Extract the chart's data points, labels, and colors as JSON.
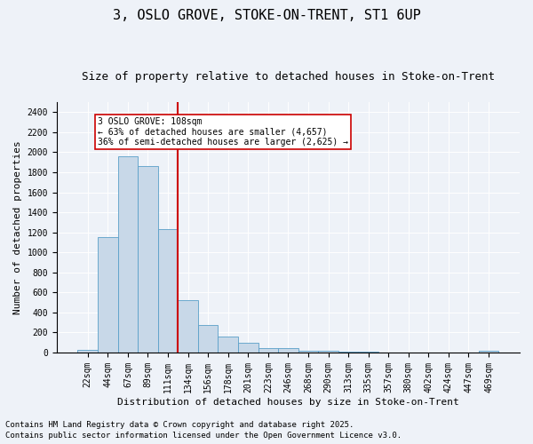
{
  "title1": "3, OSLO GROVE, STOKE-ON-TRENT, ST1 6UP",
  "title2": "Size of property relative to detached houses in Stoke-on-Trent",
  "xlabel": "Distribution of detached houses by size in Stoke-on-Trent",
  "ylabel": "Number of detached properties",
  "bar_labels": [
    "22sqm",
    "44sqm",
    "67sqm",
    "89sqm",
    "111sqm",
    "134sqm",
    "156sqm",
    "178sqm",
    "201sqm",
    "223sqm",
    "246sqm",
    "268sqm",
    "290sqm",
    "313sqm",
    "335sqm",
    "357sqm",
    "380sqm",
    "402sqm",
    "424sqm",
    "447sqm",
    "469sqm"
  ],
  "bar_values": [
    25,
    1155,
    1960,
    1860,
    1230,
    520,
    275,
    155,
    95,
    45,
    45,
    20,
    15,
    5,
    5,
    3,
    3,
    2,
    2,
    2,
    18
  ],
  "bar_color": "#c8d8e8",
  "bar_edge_color": "#5a9fc8",
  "vline_x": 4.5,
  "vline_color": "#cc0000",
  "annotation_text": "3 OSLO GROVE: 108sqm\n← 63% of detached houses are smaller (4,657)\n36% of semi-detached houses are larger (2,625) →",
  "annotation_box_color": "#ffffff",
  "annotation_box_edge": "#cc0000",
  "ylim": [
    0,
    2500
  ],
  "yticks": [
    0,
    200,
    400,
    600,
    800,
    1000,
    1200,
    1400,
    1600,
    1800,
    2000,
    2200,
    2400
  ],
  "bg_color": "#eef2f8",
  "footnote1": "Contains HM Land Registry data © Crown copyright and database right 2025.",
  "footnote2": "Contains public sector information licensed under the Open Government Licence v3.0.",
  "title1_fontsize": 11,
  "title2_fontsize": 9,
  "xlabel_fontsize": 8,
  "ylabel_fontsize": 8,
  "tick_fontsize": 7,
  "footnote_fontsize": 6.5,
  "annotation_fontsize": 7
}
